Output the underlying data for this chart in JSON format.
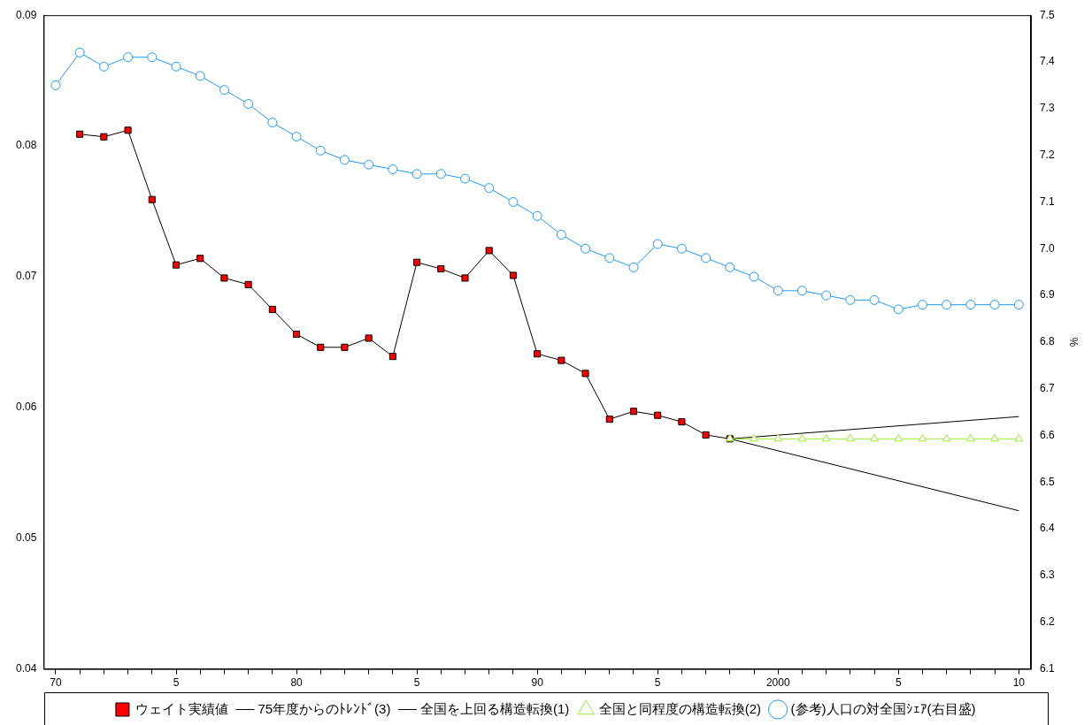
{
  "chart_data": {
    "type": "line",
    "categories": [
      "70",
      null,
      null,
      null,
      null,
      "5",
      null,
      null,
      null,
      null,
      "80",
      null,
      null,
      null,
      null,
      "5",
      null,
      null,
      null,
      null,
      "90",
      null,
      null,
      null,
      null,
      "5",
      null,
      null,
      null,
      null,
      "2000",
      null,
      null,
      null,
      null,
      "5",
      null,
      null,
      null,
      null,
      "10"
    ],
    "series": [
      {
        "name": "ウェイト実績値",
        "color": "#ff0000",
        "marker": "square",
        "values": [
          null,
          0.0809,
          0.0807,
          0.0812,
          0.0759,
          0.0709,
          0.0714,
          0.0699,
          0.0694,
          0.0675,
          0.0656,
          0.0646,
          0.0646,
          0.0653,
          0.0639,
          0.0711,
          0.0706,
          0.0699,
          0.072,
          0.0701,
          0.0641,
          0.0636,
          0.0626,
          0.0591,
          0.0597,
          0.0594,
          0.0589,
          0.0579,
          0.0576,
          null,
          null,
          null,
          null,
          null,
          null,
          null,
          null,
          null,
          null,
          null,
          null
        ]
      },
      {
        "name": "75年度からのﾄﾚﾝﾄﾞ(3)",
        "color": "#000000",
        "values": [
          null,
          null,
          null,
          null,
          null,
          null,
          null,
          null,
          null,
          null,
          null,
          null,
          null,
          null,
          null,
          null,
          null,
          null,
          null,
          null,
          null,
          null,
          null,
          null,
          null,
          null,
          null,
          null,
          0.0576,
          null,
          null,
          null,
          null,
          null,
          null,
          null,
          null,
          null,
          null,
          null,
          0.0521
        ]
      },
      {
        "name": "全国を上回る構造転換(1)",
        "color": "#000000",
        "values": [
          null,
          null,
          null,
          null,
          null,
          null,
          null,
          null,
          null,
          null,
          null,
          null,
          null,
          null,
          null,
          null,
          null,
          null,
          null,
          null,
          null,
          null,
          null,
          null,
          null,
          null,
          null,
          null,
          0.0576,
          null,
          null,
          null,
          null,
          null,
          null,
          null,
          null,
          null,
          null,
          null,
          0.0593
        ]
      },
      {
        "name": "全国と同程度の構造転換(2)",
        "color": "#99ee33",
        "marker": "triangle",
        "values": [
          null,
          null,
          null,
          null,
          null,
          null,
          null,
          null,
          null,
          null,
          null,
          null,
          null,
          null,
          null,
          null,
          null,
          null,
          null,
          null,
          null,
          null,
          null,
          null,
          null,
          null,
          null,
          null,
          0.0576,
          0.0576,
          0.0576,
          0.0576,
          0.0576,
          0.0576,
          0.0576,
          0.0576,
          0.0576,
          0.0576,
          0.0576,
          0.0576,
          0.0576
        ]
      },
      {
        "name": "(参考)人口の対全国ｼｪｱ(右目盛)",
        "color": "#1e9bff",
        "marker": "circle",
        "axis": "y2",
        "values": [
          7.35,
          7.42,
          7.39,
          7.41,
          7.41,
          7.39,
          7.37,
          7.34,
          7.31,
          7.27,
          7.24,
          7.21,
          7.19,
          7.18,
          7.17,
          7.16,
          7.16,
          7.15,
          7.13,
          7.1,
          7.07,
          7.03,
          7.0,
          6.98,
          6.96,
          7.01,
          7.0,
          6.98,
          6.96,
          6.94,
          6.91,
          6.91,
          6.9,
          6.89,
          6.89,
          6.87,
          6.88,
          6.88,
          6.88,
          6.88,
          6.88
        ]
      }
    ],
    "ylim": [
      0.04,
      0.09
    ],
    "yticks": [
      0.04,
      0.05,
      0.06,
      0.07,
      0.08,
      0.09
    ],
    "y2lim": [
      6.1,
      7.5
    ],
    "y2ticks": [
      6.1,
      6.2,
      6.3,
      6.4,
      6.5,
      6.6,
      6.7,
      6.8,
      6.9,
      {
        "value": 7,
        "label": "7.0"
      },
      7.1,
      7.2,
      7.3,
      7.4,
      7.5
    ],
    "y2label": "%",
    "grid": false,
    "legend": "bottom"
  }
}
